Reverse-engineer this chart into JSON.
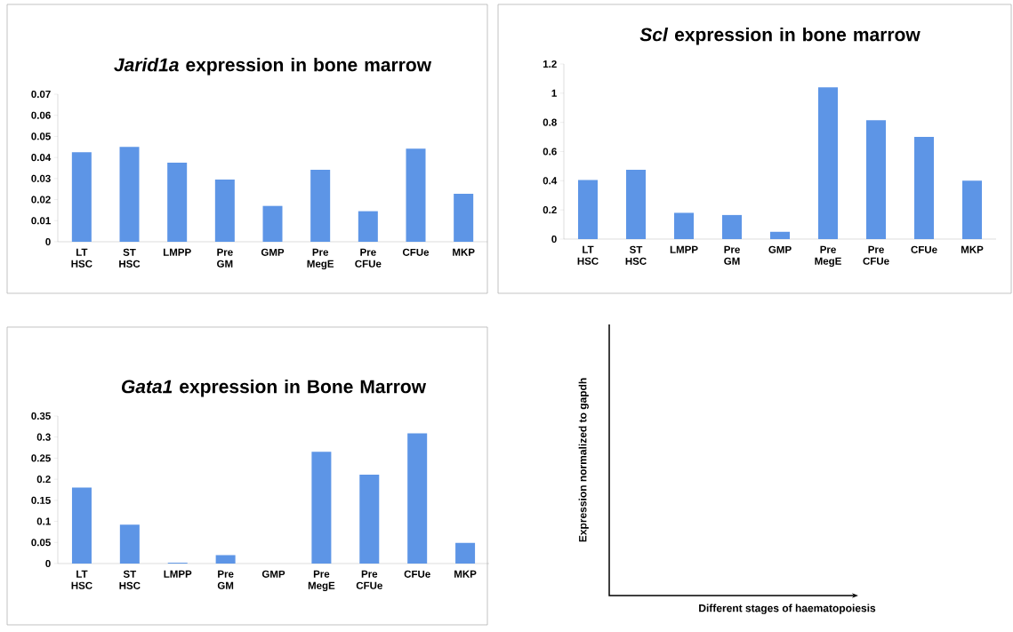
{
  "chart_data": [
    {
      "type": "bar",
      "title": "*Jarid1a* expression in bone marrow",
      "categories": [
        "LT HSC",
        "ST HSC",
        "LMPP",
        "Pre GM",
        "GMP",
        "Pre MegE",
        "Pre CFUe",
        "CFUe",
        "MKP"
      ],
      "values": [
        0.0425,
        0.045,
        0.0375,
        0.0295,
        0.017,
        0.0342,
        0.0145,
        0.0442,
        0.0228
      ],
      "color": "#5d95e6",
      "ylim": [
        0,
        0.07
      ],
      "yticks": [
        0,
        0.01,
        0.02,
        0.03,
        0.04,
        0.05,
        0.06,
        0.07
      ]
    },
    {
      "type": "bar",
      "title": "*Scl* expression in bone marrow",
      "categories": [
        "LT HSC",
        "ST HSC",
        "LMPP",
        "Pre GM",
        "GMP",
        "Pre MegE",
        "Pre CFUe",
        "CFUe",
        "MKP"
      ],
      "values": [
        0.405,
        0.475,
        0.18,
        0.165,
        0.05,
        1.04,
        0.815,
        0.7,
        0.4
      ],
      "color": "#5d95e6",
      "ylim": [
        0,
        1.2
      ],
      "yticks": [
        0,
        0.2,
        0.4,
        0.6,
        0.8,
        1,
        1.2
      ]
    },
    {
      "type": "bar",
      "title": "*Gata1* expression in Bone Marrow",
      "categories": [
        "LT HSC",
        "ST HSC",
        "LMPP",
        "Pre GM",
        "GMP",
        "Pre MegE",
        "Pre CFUe",
        "CFUe",
        "MKP"
      ],
      "values": [
        0.18,
        0.092,
        0.002,
        0.02,
        0,
        0.265,
        0.211,
        0.309,
        0.049
      ],
      "color": "#5d95e6",
      "ylim": [
        0,
        0.35
      ],
      "yticks": [
        0,
        0.05,
        0.1,
        0.15,
        0.2,
        0.25,
        0.3,
        0.35
      ]
    },
    {
      "type": "other",
      "xlabel": "Different stages of haematopoiesis",
      "ylabel": "Expression normalized to gapdh"
    }
  ]
}
